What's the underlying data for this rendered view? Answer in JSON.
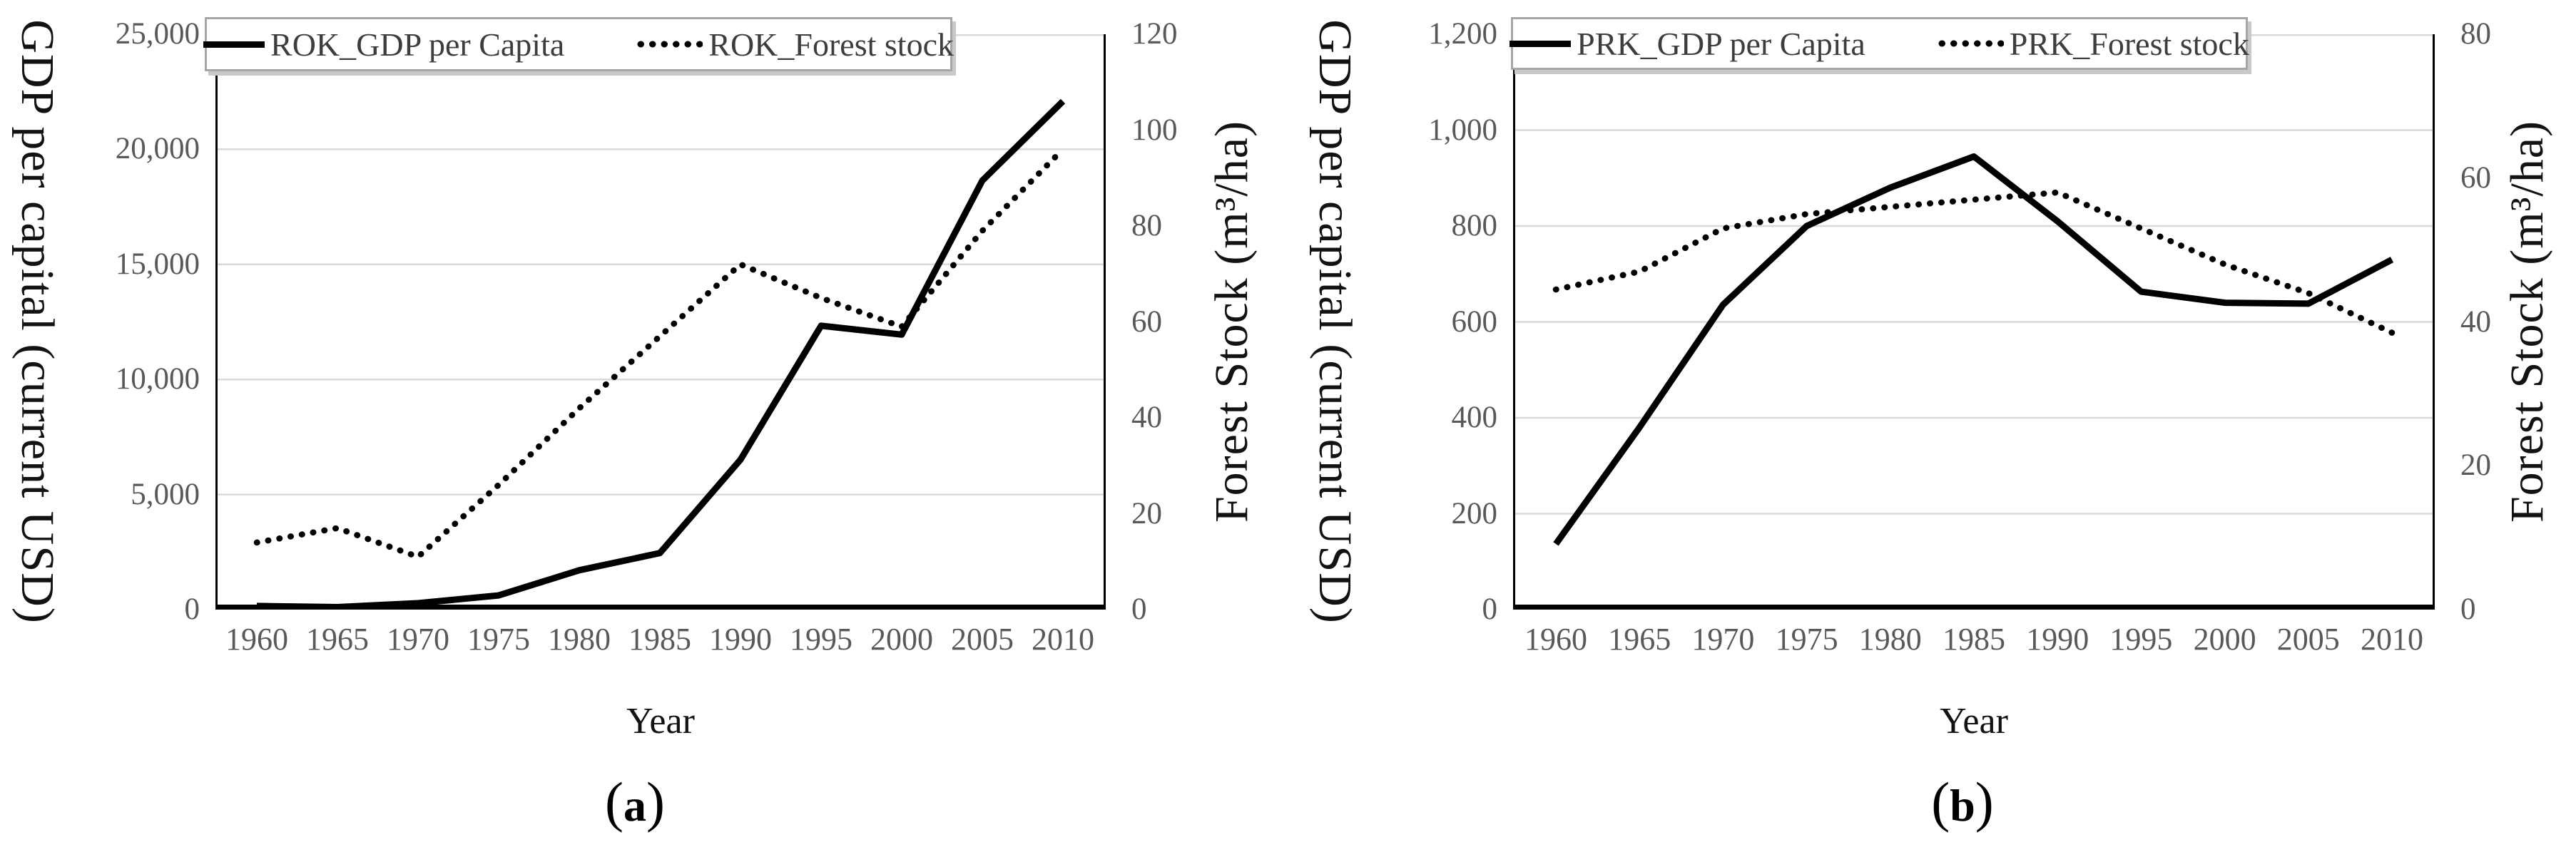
{
  "page": {
    "background": "#ffffff"
  },
  "chart_data": [
    {
      "type": "line",
      "title": "",
      "caption": {
        "open": "(",
        "letter": "a",
        "close": ")"
      },
      "x_label": "Year",
      "x_categories": [
        1960,
        1965,
        1970,
        1975,
        1980,
        1985,
        1990,
        1995,
        2000,
        2005,
        2010
      ],
      "x_tick_labels": [
        "1960",
        "1965",
        "1970",
        "1975",
        "1980",
        "1985",
        "1990",
        "1995",
        "2000",
        "2005",
        "2010"
      ],
      "left_axis": {
        "title": "GDP per capital (current USD)",
        "min": 0,
        "max": 25000,
        "tick_step": 5000,
        "tick_labels_top_down": [
          "25,000",
          "20,000",
          "15,000",
          "10,000",
          "5,000",
          "0"
        ]
      },
      "right_axis": {
        "title": "Forest Stock (m³/ha)",
        "min": 0,
        "max": 120,
        "tick_step": 20,
        "tick_labels_top_down": [
          "120",
          "100",
          "80",
          "60",
          "40",
          "20",
          "0"
        ]
      },
      "grid": {
        "horizontal": true,
        "vertical": false,
        "color": "#d9d9d9",
        "aligned_to": "left_axis"
      },
      "legend": {
        "position": "top",
        "items": [
          {
            "label": "ROK_GDP per Capita",
            "style": "solid",
            "axis": "left"
          },
          {
            "label": "ROK_Forest stock",
            "style": "dotted",
            "axis": "right"
          }
        ]
      },
      "series": [
        {
          "name": "ROK_GDP per Capita",
          "axis": "left",
          "line_style": "solid",
          "color": "#000000",
          "values": [
            158,
            109,
            279,
            617,
            1711,
            2457,
            6516,
            12333,
            11948,
            18640,
            22087
          ]
        },
        {
          "name": "ROK_Forest stock",
          "axis": "right",
          "line_style": "dotted",
          "color": "#000000",
          "values": [
            14,
            17,
            11,
            26,
            42,
            57,
            72,
            65,
            59,
            79,
            96
          ]
        }
      ]
    },
    {
      "type": "line",
      "title": "",
      "caption": {
        "open": "(",
        "letter": "b",
        "close": ")"
      },
      "x_label": "Year",
      "x_categories": [
        1960,
        1965,
        1970,
        1975,
        1980,
        1985,
        1990,
        1995,
        2000,
        2005,
        2010
      ],
      "x_tick_labels": [
        "1960",
        "1965",
        "1970",
        "1975",
        "1980",
        "1985",
        "1990",
        "1995",
        "2000",
        "2005",
        "2010"
      ],
      "left_axis": {
        "title": "GDP per capital (current USD)",
        "min": 0,
        "max": 1200,
        "tick_step": 200,
        "tick_labels_top_down": [
          "1,200",
          "1,000",
          "800",
          "600",
          "400",
          "200",
          "0"
        ]
      },
      "right_axis": {
        "title": "Forest Stock (m³/ha)",
        "min": 0,
        "max": 80,
        "tick_step": 20,
        "tick_labels_top_down": [
          "80",
          "60",
          "40",
          "20",
          "0"
        ]
      },
      "grid": {
        "horizontal": true,
        "vertical": false,
        "color": "#d9d9d9",
        "aligned_to": "left_axis"
      },
      "legend": {
        "position": "top",
        "items": [
          {
            "label": "PRK_GDP per Capita",
            "style": "solid",
            "axis": "left"
          },
          {
            "label": "PRK_Forest stock",
            "style": "dotted",
            "axis": "right"
          }
        ]
      },
      "series": [
        {
          "name": "PRK_GDP per Capita",
          "axis": "left",
          "line_style": "solid",
          "color": "#000000",
          "values": [
            137,
            380,
            636,
            800,
            880,
            945,
            810,
            663,
            640,
            638,
            730
          ]
        },
        {
          "name": "PRK_Forest stock",
          "axis": "right",
          "line_style": "dotted",
          "color": "#000000",
          "values": [
            44.5,
            47,
            53,
            55,
            56,
            57,
            58,
            53,
            48,
            44,
            38.5
          ]
        }
      ]
    }
  ]
}
